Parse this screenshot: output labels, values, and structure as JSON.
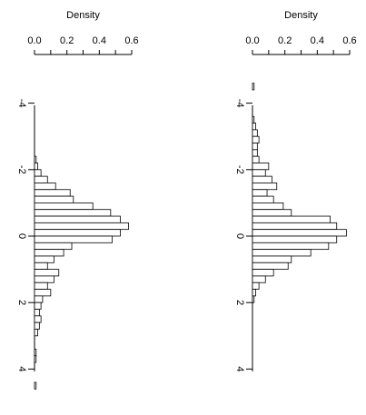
{
  "chart_data": [
    {
      "type": "bar",
      "orientation": "horizontal",
      "xlabel": "Density",
      "xlim": [
        0,
        0.6
      ],
      "xticks": [
        "0.0",
        "0.2",
        "0.4",
        "0.6"
      ],
      "ylim": [
        -4.5,
        4.5
      ],
      "yticks": [
        "-4",
        "-2",
        "0",
        "2",
        "4"
      ],
      "bin_width": 0.2,
      "bins": [
        {
          "lo": -2.4,
          "hi": -2.2,
          "density": 0.01
        },
        {
          "lo": -2.2,
          "hi": -2.0,
          "density": 0.02
        },
        {
          "lo": -2.0,
          "hi": -1.8,
          "density": 0.04
        },
        {
          "lo": -1.8,
          "hi": -1.6,
          "density": 0.08
        },
        {
          "lo": -1.6,
          "hi": -1.4,
          "density": 0.13
        },
        {
          "lo": -1.4,
          "hi": -1.2,
          "density": 0.22
        },
        {
          "lo": -1.2,
          "hi": -1.0,
          "density": 0.24
        },
        {
          "lo": -1.0,
          "hi": -0.8,
          "density": 0.36
        },
        {
          "lo": -0.8,
          "hi": -0.6,
          "density": 0.47
        },
        {
          "lo": -0.6,
          "hi": -0.4,
          "density": 0.53
        },
        {
          "lo": -0.4,
          "hi": -0.2,
          "density": 0.58
        },
        {
          "lo": -0.2,
          "hi": 0.0,
          "density": 0.53
        },
        {
          "lo": 0.0,
          "hi": 0.2,
          "density": 0.48
        },
        {
          "lo": 0.2,
          "hi": 0.4,
          "density": 0.23
        },
        {
          "lo": 0.4,
          "hi": 0.6,
          "density": 0.18
        },
        {
          "lo": 0.6,
          "hi": 0.8,
          "density": 0.12
        },
        {
          "lo": 0.8,
          "hi": 1.0,
          "density": 0.08
        },
        {
          "lo": 1.0,
          "hi": 1.2,
          "density": 0.15
        },
        {
          "lo": 1.2,
          "hi": 1.4,
          "density": 0.12
        },
        {
          "lo": 1.4,
          "hi": 1.6,
          "density": 0.08
        },
        {
          "lo": 1.6,
          "hi": 1.8,
          "density": 0.1
        },
        {
          "lo": 1.8,
          "hi": 2.0,
          "density": 0.05
        },
        {
          "lo": 2.0,
          "hi": 2.2,
          "density": 0.04
        },
        {
          "lo": 2.2,
          "hi": 2.4,
          "density": 0.03
        },
        {
          "lo": 2.4,
          "hi": 2.6,
          "density": 0.04
        },
        {
          "lo": 2.6,
          "hi": 2.8,
          "density": 0.03
        },
        {
          "lo": 2.8,
          "hi": 3.0,
          "density": 0.02
        },
        {
          "lo": 3.4,
          "hi": 3.6,
          "density": 0.01
        },
        {
          "lo": 3.6,
          "hi": 3.8,
          "density": 0.01
        },
        {
          "lo": 4.4,
          "hi": 4.6,
          "density": 0.01
        }
      ]
    },
    {
      "type": "bar",
      "orientation": "horizontal",
      "xlabel": "Density",
      "xlim": [
        0,
        0.6
      ],
      "xticks": [
        "0.0",
        "0.2",
        "0.4",
        "0.6"
      ],
      "ylim": [
        -4.5,
        4.5
      ],
      "yticks": [
        "-4",
        "-2",
        "0",
        "2",
        "4"
      ],
      "bin_width": 0.2,
      "bins": [
        {
          "lo": -4.6,
          "hi": -4.4,
          "density": 0.01
        },
        {
          "lo": -3.6,
          "hi": -3.4,
          "density": 0.01
        },
        {
          "lo": -3.4,
          "hi": -3.2,
          "density": 0.02
        },
        {
          "lo": -3.2,
          "hi": -3.0,
          "density": 0.03
        },
        {
          "lo": -3.0,
          "hi": -2.8,
          "density": 0.04
        },
        {
          "lo": -2.8,
          "hi": -2.6,
          "density": 0.03
        },
        {
          "lo": -2.6,
          "hi": -2.4,
          "density": 0.03
        },
        {
          "lo": -2.4,
          "hi": -2.2,
          "density": 0.04
        },
        {
          "lo": -2.2,
          "hi": -2.0,
          "density": 0.1
        },
        {
          "lo": -2.0,
          "hi": -1.8,
          "density": 0.08
        },
        {
          "lo": -1.8,
          "hi": -1.6,
          "density": 0.12
        },
        {
          "lo": -1.6,
          "hi": -1.4,
          "density": 0.15
        },
        {
          "lo": -1.4,
          "hi": -1.2,
          "density": 0.09
        },
        {
          "lo": -1.2,
          "hi": -1.0,
          "density": 0.13
        },
        {
          "lo": -1.0,
          "hi": -0.8,
          "density": 0.19
        },
        {
          "lo": -0.8,
          "hi": -0.6,
          "density": 0.24
        },
        {
          "lo": -0.6,
          "hi": -0.4,
          "density": 0.48
        },
        {
          "lo": -0.4,
          "hi": -0.2,
          "density": 0.52
        },
        {
          "lo": -0.2,
          "hi": 0.0,
          "density": 0.58
        },
        {
          "lo": 0.0,
          "hi": 0.2,
          "density": 0.52
        },
        {
          "lo": 0.2,
          "hi": 0.4,
          "density": 0.47
        },
        {
          "lo": 0.4,
          "hi": 0.6,
          "density": 0.36
        },
        {
          "lo": 0.6,
          "hi": 0.8,
          "density": 0.24
        },
        {
          "lo": 0.8,
          "hi": 1.0,
          "density": 0.22
        },
        {
          "lo": 1.0,
          "hi": 1.2,
          "density": 0.13
        },
        {
          "lo": 1.2,
          "hi": 1.4,
          "density": 0.08
        },
        {
          "lo": 1.4,
          "hi": 1.6,
          "density": 0.04
        },
        {
          "lo": 1.6,
          "hi": 1.8,
          "density": 0.02
        },
        {
          "lo": 1.8,
          "hi": 2.0,
          "density": 0.01
        }
      ]
    }
  ]
}
